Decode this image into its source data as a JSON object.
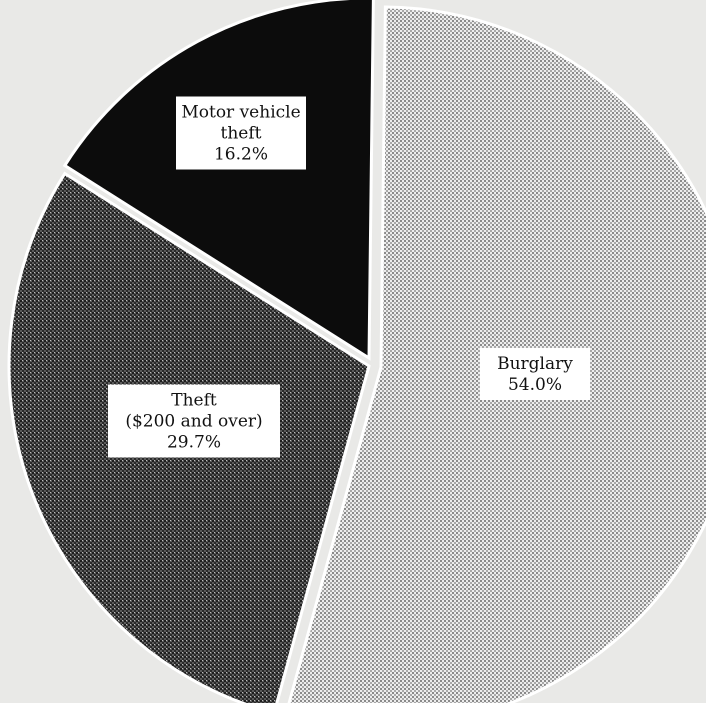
{
  "chart_data": {
    "type": "pie",
    "title": "",
    "slices": [
      {
        "label_lines": [
          "Burglary"
        ],
        "percent_text": "54.0%",
        "value": 54.0,
        "pattern": "light-dot"
      },
      {
        "label_lines": [
          "Theft",
          "($200 and over)"
        ],
        "percent_text": "29.7%",
        "value": 29.7,
        "pattern": "dark-dot"
      },
      {
        "label_lines": [
          "Motor vehicle",
          "theft"
        ],
        "percent_text": "16.2%",
        "value": 16.2,
        "pattern": "solid-black"
      }
    ]
  }
}
